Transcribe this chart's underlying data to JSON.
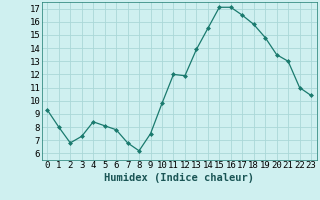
{
  "x": [
    0,
    1,
    2,
    3,
    4,
    5,
    6,
    7,
    8,
    9,
    10,
    11,
    12,
    13,
    14,
    15,
    16,
    17,
    18,
    19,
    20,
    21,
    22,
    23
  ],
  "y": [
    9.3,
    8.0,
    6.8,
    7.3,
    8.4,
    8.1,
    7.8,
    6.8,
    6.2,
    7.5,
    9.8,
    12.0,
    11.9,
    13.9,
    15.5,
    17.1,
    17.1,
    16.5,
    15.8,
    14.8,
    13.5,
    13.0,
    11.0,
    10.4
  ],
  "line_color": "#1a7a6e",
  "marker": "D",
  "marker_size": 2.0,
  "bg_color": "#cff0f0",
  "grid_color": "#aad8d8",
  "xlabel": "Humidex (Indice chaleur)",
  "ylim_min": 5.5,
  "ylim_max": 17.5,
  "xlim_min": -0.5,
  "xlim_max": 23.5,
  "yticks": [
    6,
    7,
    8,
    9,
    10,
    11,
    12,
    13,
    14,
    15,
    16,
    17
  ],
  "xticks": [
    0,
    1,
    2,
    3,
    4,
    5,
    6,
    7,
    8,
    9,
    10,
    11,
    12,
    13,
    14,
    15,
    16,
    17,
    18,
    19,
    20,
    21,
    22,
    23
  ],
  "xlabel_fontsize": 7.5,
  "tick_fontsize": 6.5,
  "line_width": 0.9,
  "border_color": "#1a7a6e"
}
